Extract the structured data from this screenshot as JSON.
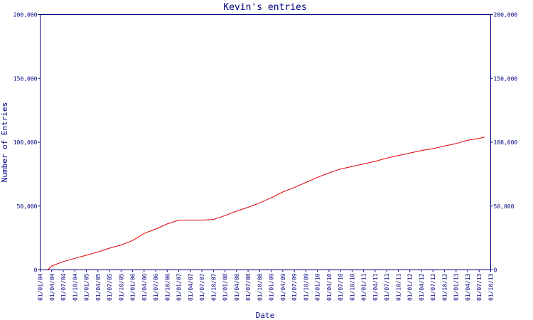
{
  "chart_data": {
    "type": "line",
    "title": "Kevin's entries",
    "xlabel": "Date",
    "ylabel": "Number of Entries",
    "ylim": [
      0,
      200000
    ],
    "yticks": [
      0,
      50000,
      100000,
      150000,
      200000
    ],
    "ytick_labels": [
      "0",
      "50,000",
      "100,000",
      "150,000",
      "200,000"
    ],
    "xlim": [
      "2004-01-01",
      "2013-10-01"
    ],
    "x_tick_labels": [
      "01/01/04",
      "01/04/04",
      "01/07/04",
      "01/10/04",
      "01/01/05",
      "01/04/05",
      "01/07/05",
      "01/10/05",
      "01/01/06",
      "01/04/06",
      "01/07/06",
      "01/10/06",
      "01/01/07",
      "01/04/07",
      "01/07/07",
      "01/10/07",
      "01/01/08",
      "01/04/08",
      "01/07/08",
      "01/10/08",
      "01/01/09",
      "01/04/09",
      "01/07/09",
      "01/10/09",
      "01/01/10",
      "01/04/10",
      "01/07/10",
      "01/10/10",
      "01/01/11",
      "01/04/11",
      "01/07/11",
      "01/10/11",
      "01/01/12",
      "01/04/12",
      "01/07/12",
      "01/10/12",
      "01/01/13",
      "01/04/13",
      "01/07/13",
      "01/10/13"
    ],
    "grid": false,
    "secondary_y_axis": true,
    "series": [
      {
        "color": "#e00000",
        "points": [
          [
            "2004-03-01",
            0
          ],
          [
            "2004-04-01",
            3000
          ],
          [
            "2004-07-01",
            6500
          ],
          [
            "2004-10-01",
            9000
          ],
          [
            "2005-01-01",
            11500
          ],
          [
            "2005-04-01",
            14000
          ],
          [
            "2005-07-01",
            17000
          ],
          [
            "2005-10-01",
            19500
          ],
          [
            "2006-01-01",
            23000
          ],
          [
            "2006-04-01",
            28500
          ],
          [
            "2006-07-01",
            32000
          ],
          [
            "2006-10-01",
            36000
          ],
          [
            "2007-01-01",
            39000
          ],
          [
            "2007-04-01",
            39000
          ],
          [
            "2007-07-01",
            39000
          ],
          [
            "2007-10-01",
            39500
          ],
          [
            "2008-01-01",
            42500
          ],
          [
            "2008-04-01",
            46000
          ],
          [
            "2008-07-01",
            49000
          ],
          [
            "2008-10-01",
            52500
          ],
          [
            "2009-01-01",
            56500
          ],
          [
            "2009-04-01",
            61000
          ],
          [
            "2009-07-01",
            64500
          ],
          [
            "2009-10-01",
            68500
          ],
          [
            "2010-01-01",
            72500
          ],
          [
            "2010-04-01",
            76000
          ],
          [
            "2010-07-01",
            79000
          ],
          [
            "2010-10-01",
            81000
          ],
          [
            "2011-01-01",
            83000
          ],
          [
            "2011-04-01",
            85000
          ],
          [
            "2011-07-01",
            87500
          ],
          [
            "2011-10-01",
            89500
          ],
          [
            "2012-01-01",
            91500
          ],
          [
            "2012-04-01",
            93500
          ],
          [
            "2012-07-01",
            95000
          ],
          [
            "2012-10-01",
            97000
          ],
          [
            "2013-01-01",
            99000
          ],
          [
            "2013-04-01",
            101500
          ],
          [
            "2013-07-01",
            103000
          ],
          [
            "2013-08-15",
            104000
          ]
        ]
      }
    ]
  }
}
